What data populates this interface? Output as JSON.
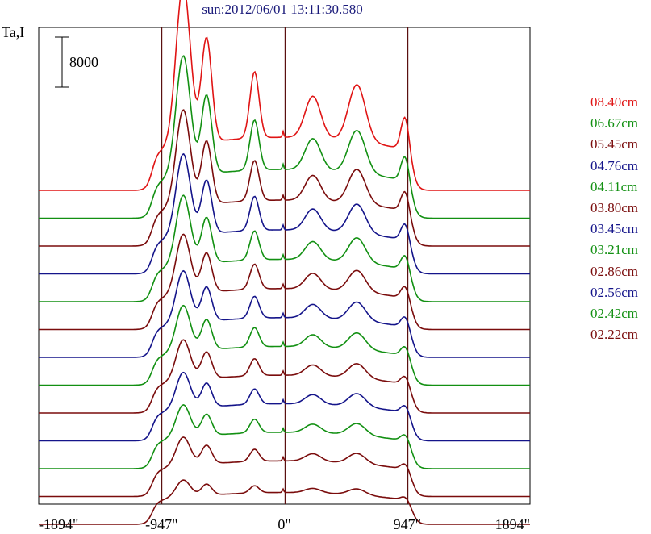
{
  "chart_data": {
    "type": "line",
    "title": "sun:2012/06/01 13:11:30.580",
    "ylabel": "Ta,I",
    "scale_bar_label": "8000",
    "xlabel": "",
    "x_ticks": [
      "-1894\"",
      "-947\"",
      "0\"",
      "947\"",
      "1894\""
    ],
    "x_tick_values": [
      -1894,
      -947,
      0,
      947,
      1894
    ],
    "xlim": [
      -1894,
      1894
    ],
    "vertical_lines_at": [
      -947,
      0,
      947
    ],
    "colors": {
      "red": "#e01414",
      "green": "#129012",
      "maroon": "#7a0c0c",
      "navy": "#14148a"
    },
    "series": [
      {
        "name": "08.40cm",
        "color": "#e01414",
        "amp": 1.0
      },
      {
        "name": "06.67cm",
        "color": "#129012",
        "amp": 0.82
      },
      {
        "name": "05.45cm",
        "color": "#7a0c0c",
        "amp": 0.7
      },
      {
        "name": "04.76cm",
        "color": "#14148a",
        "amp": 0.62
      },
      {
        "name": "04.11cm",
        "color": "#129012",
        "amp": 0.55
      },
      {
        "name": "03.80cm",
        "color": "#7a0c0c",
        "amp": 0.49
      },
      {
        "name": "03.45cm",
        "color": "#14148a",
        "amp": 0.44
      },
      {
        "name": "03.21cm",
        "color": "#129012",
        "amp": 0.4
      },
      {
        "name": "02.86cm",
        "color": "#7a0c0c",
        "amp": 0.36
      },
      {
        "name": "02.56cm",
        "color": "#14148a",
        "amp": 0.33
      },
      {
        "name": "02.42cm",
        "color": "#129012",
        "amp": 0.3
      },
      {
        "name": "02.22cm",
        "color": "#7a0c0c",
        "amp": 0.27
      }
    ],
    "bottom_series_color": "#7a0c0c"
  }
}
